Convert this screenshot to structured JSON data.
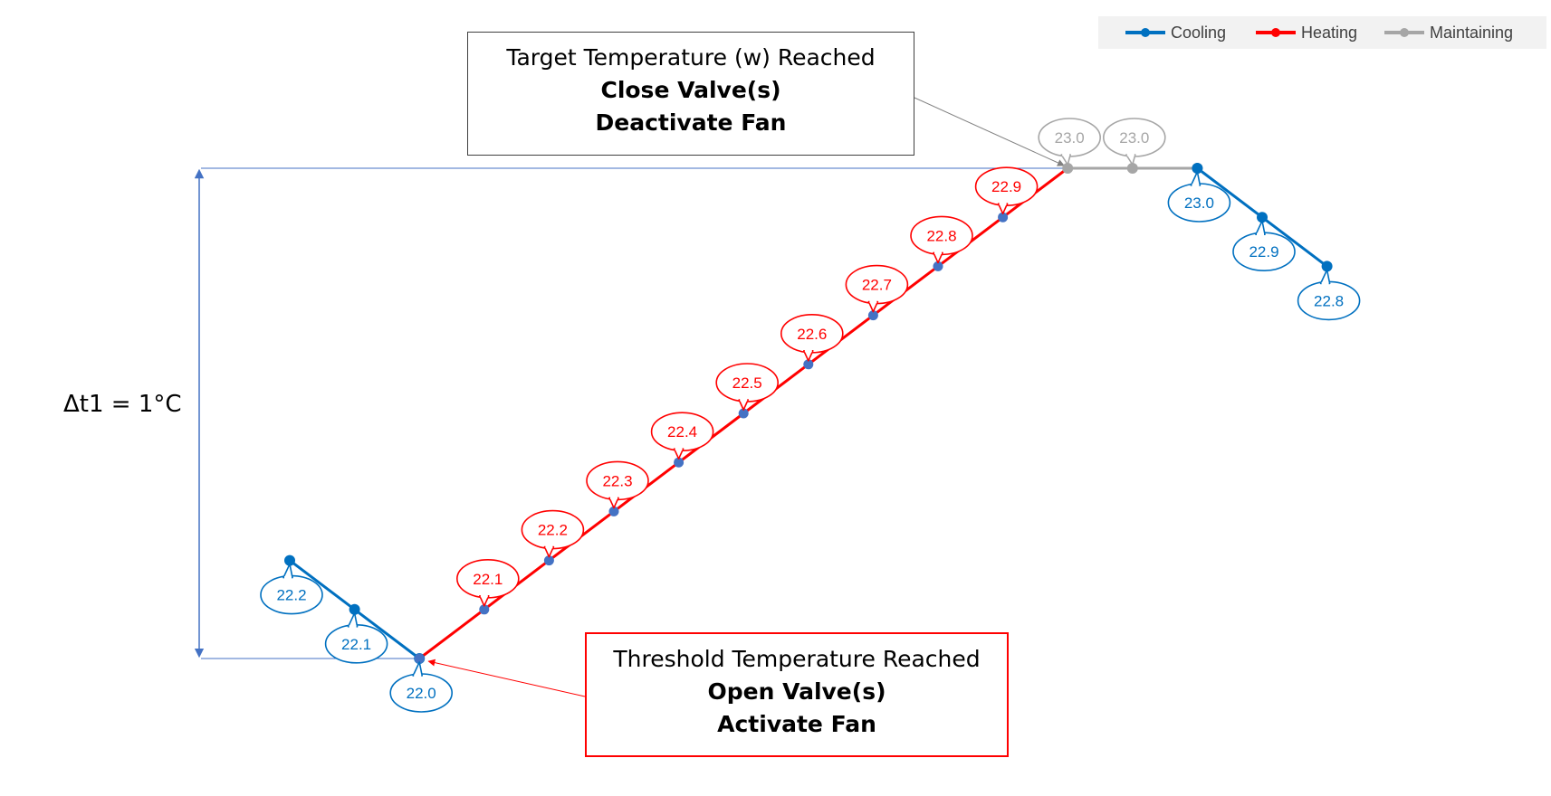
{
  "legend": {
    "cooling": "Cooling",
    "heating": "Heating",
    "maintaining": "Maintaining"
  },
  "colors": {
    "cooling": "#0070c0",
    "heating": "#ff0000",
    "maintaining": "#a6a6a6",
    "dimension": "#4472c4"
  },
  "annotations": {
    "target": {
      "line1": "Target Temperature (w) Reached",
      "line2": "Close Valve(s)",
      "line3": "Deactivate Fan"
    },
    "threshold": {
      "line1": "Threshold Temperature Reached",
      "line2": "Open Valve(s)",
      "line3": "Activate Fan"
    },
    "delta": "Δt1 = 1°C"
  },
  "chart_data": {
    "type": "line",
    "series": [
      {
        "name": "Cooling",
        "color": "#0070c0",
        "x": [
          0,
          1,
          2
        ],
        "values": [
          22.2,
          22.1,
          22.0
        ],
        "labels": [
          "22.2",
          "22.1",
          "22.0"
        ]
      },
      {
        "name": "Heating",
        "color": "#ff0000",
        "x": [
          2,
          3,
          4,
          5,
          6,
          7,
          8,
          9,
          10,
          11,
          12
        ],
        "values": [
          22.0,
          22.1,
          22.2,
          22.3,
          22.4,
          22.5,
          22.6,
          22.7,
          22.8,
          22.9,
          23.0
        ],
        "labels": [
          "",
          "22.1",
          "22.2",
          "22.3",
          "22.4",
          "22.5",
          "22.6",
          "22.7",
          "22.8",
          "22.9",
          ""
        ]
      },
      {
        "name": "Maintaining",
        "color": "#a6a6a6",
        "x": [
          12,
          13,
          14
        ],
        "values": [
          23.0,
          23.0,
          23.0
        ],
        "labels": [
          "23.0",
          "23.0",
          ""
        ]
      },
      {
        "name": "Cooling",
        "color": "#0070c0",
        "x": [
          14,
          15,
          16
        ],
        "values": [
          23.0,
          22.9,
          22.8
        ],
        "labels": [
          "23.0",
          "22.9",
          "22.8"
        ]
      }
    ],
    "ylim": [
      22.0,
      23.0
    ],
    "legend_position": "top-right",
    "grid": false
  }
}
